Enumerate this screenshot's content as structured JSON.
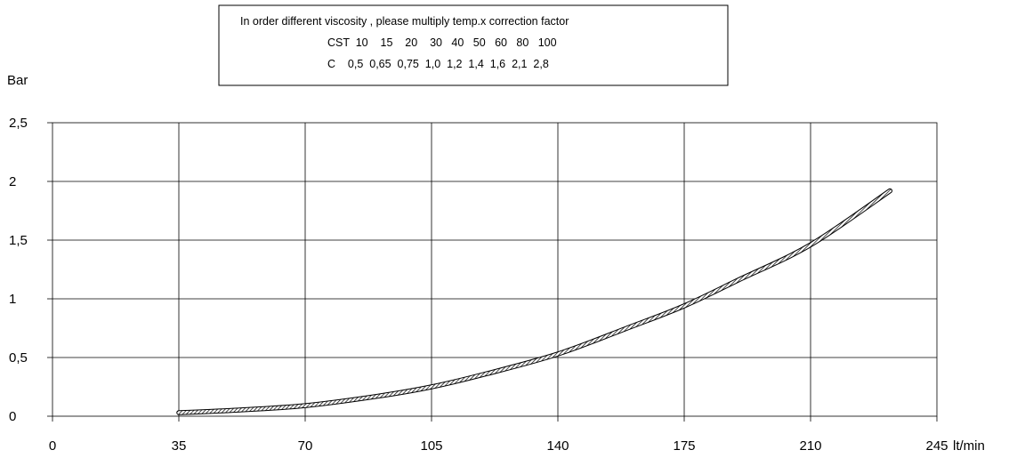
{
  "chart_data": {
    "type": "line",
    "ylabel": "Bar",
    "xunit": "lt/min",
    "xlim": [
      0,
      245
    ],
    "ylim": [
      0,
      2.5
    ],
    "x_ticks": [
      "0",
      "35",
      "70",
      "105",
      "140",
      "175",
      "210",
      "245"
    ],
    "x_tick_values": [
      0,
      35,
      70,
      105,
      140,
      175,
      210,
      245
    ],
    "y_ticks": [
      "0",
      "0,5",
      "1",
      "1,5",
      "2",
      "2,5"
    ],
    "y_tick_values": [
      0,
      0.5,
      1,
      1.5,
      2,
      2.5
    ],
    "grid": true,
    "series": [
      {
        "x": [
          35,
          50,
          70,
          90,
          105,
          120,
          140,
          160,
          175,
          190,
          210,
          232
        ],
        "y": [
          0.03,
          0.05,
          0.09,
          0.17,
          0.25,
          0.36,
          0.53,
          0.76,
          0.94,
          1.16,
          1.46,
          1.92
        ]
      }
    ],
    "colors": {
      "line": "#000000",
      "grid": "#000000",
      "background": "#ffffff"
    }
  },
  "note": {
    "line1": "In order different viscosity , please multiply temp.x correction factor",
    "row_cst": "CST  10    15    20    30   40   50   60   80   100",
    "row_c": "C    0,5  0,65  0,75  1,0  1,2  1,4  1,6  2,1  2,8"
  }
}
